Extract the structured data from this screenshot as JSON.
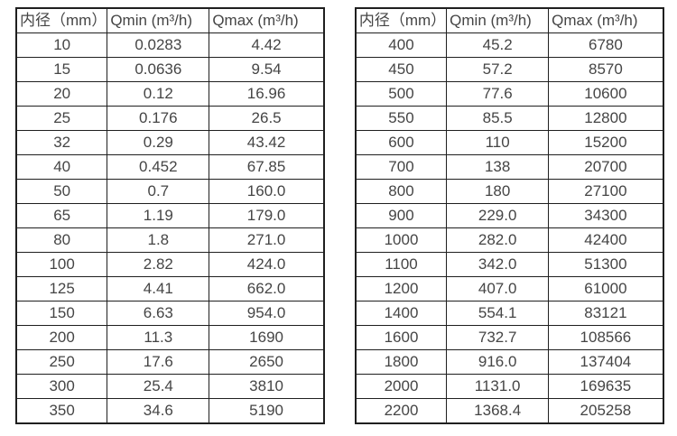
{
  "page": {
    "background": "#ffffff",
    "border_color": "#1f1f1f",
    "text_color": "#454545"
  },
  "tables": [
    {
      "name": "flow-table-small-diameters",
      "headers": [
        "内径（mm）",
        "Qmin (m³/h)",
        "Qmax (m³/h)"
      ],
      "rows": [
        [
          "10",
          "0.0283",
          "4.42"
        ],
        [
          "15",
          "0.0636",
          "9.54"
        ],
        [
          "20",
          "0.12",
          "16.96"
        ],
        [
          "25",
          "0.176",
          "26.5"
        ],
        [
          "32",
          "0.29",
          "43.42"
        ],
        [
          "40",
          "0.452",
          "67.85"
        ],
        [
          "50",
          "0.7",
          "160.0"
        ],
        [
          "65",
          "1.19",
          "179.0"
        ],
        [
          "80",
          "1.8",
          "271.0"
        ],
        [
          "100",
          "2.82",
          "424.0"
        ],
        [
          "125",
          "4.41",
          "662.0"
        ],
        [
          "150",
          "6.63",
          "954.0"
        ],
        [
          "200",
          "11.3",
          "1690"
        ],
        [
          "250",
          "17.6",
          "2650"
        ],
        [
          "300",
          "25.4",
          "3810"
        ],
        [
          "350",
          "34.6",
          "5190"
        ]
      ]
    },
    {
      "name": "flow-table-large-diameters",
      "headers": [
        "内径（mm）",
        "Qmin (m³/h)",
        "Qmax (m³/h)"
      ],
      "rows": [
        [
          "400",
          "45.2",
          "6780"
        ],
        [
          "450",
          "57.2",
          "8570"
        ],
        [
          "500",
          "77.6",
          "10600"
        ],
        [
          "550",
          "85.5",
          "12800"
        ],
        [
          "600",
          "110",
          "15200"
        ],
        [
          "700",
          "138",
          "20700"
        ],
        [
          "800",
          "180",
          "27100"
        ],
        [
          "900",
          "229.0",
          "34300"
        ],
        [
          "1000",
          "282.0",
          "42400"
        ],
        [
          "1100",
          "342.0",
          "51300"
        ],
        [
          "1200",
          "407.0",
          "61000"
        ],
        [
          "1400",
          "554.1",
          "83121"
        ],
        [
          "1600",
          "732.7",
          "108566"
        ],
        [
          "1800",
          "916.0",
          "137404"
        ],
        [
          "2000",
          "1131.0",
          "169635"
        ],
        [
          "2200",
          "1368.4",
          "205258"
        ]
      ]
    }
  ]
}
